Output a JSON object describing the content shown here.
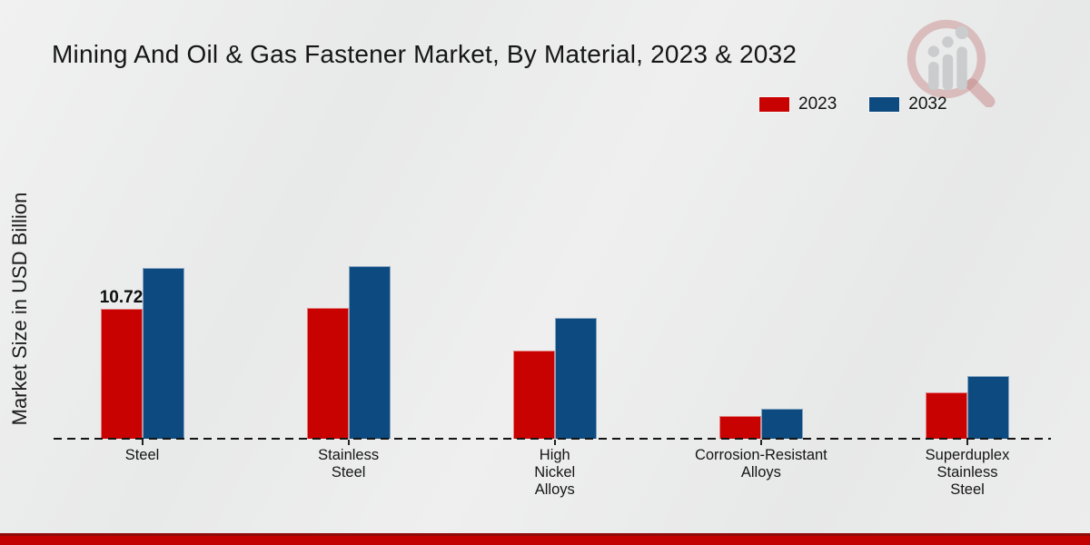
{
  "title": "Mining And Oil & Gas Fastener Market, By Material, 2023 & 2032",
  "y_axis_label": "Market Size in USD Billion",
  "legend": {
    "items": [
      {
        "label": "2023",
        "color": "#c80101"
      },
      {
        "label": "2032",
        "color": "#0d4a80"
      }
    ],
    "position": "top-right"
  },
  "logo": {
    "name": "magnifier-bar-chart-logo",
    "ring_color": "#d4a5a5",
    "bars_color": "#c7c9cb"
  },
  "footer": {
    "band_color": "#c30101",
    "band_edge_color": "#8f0a0a"
  },
  "chart_data": {
    "type": "bar",
    "title": "Mining And Oil & Gas Fastener Market, By Material, 2023 & 2032",
    "xlabel": "",
    "ylabel": "Market Size in USD Billion",
    "categories": [
      "Steel",
      "Stainless Steel",
      "High Nickel Alloys",
      "Corrosion-Resistant Alloys",
      "Superduplex Stainless Steel"
    ],
    "category_lines": [
      [
        "Steel"
      ],
      [
        "Stainless",
        "Steel"
      ],
      [
        "High",
        "Nickel",
        "Alloys"
      ],
      [
        "Corrosion-Resistant",
        "Alloys"
      ],
      [
        "Superduplex",
        "Stainless",
        "Steel"
      ]
    ],
    "series": [
      {
        "name": "2023",
        "color": "#c80101",
        "values": [
          10.72,
          10.8,
          7.3,
          1.9,
          3.8
        ]
      },
      {
        "name": "2032",
        "color": "#0d4a80",
        "values": [
          14.1,
          14.3,
          10.0,
          2.5,
          5.2
        ]
      }
    ],
    "data_labels": [
      {
        "series": "2023",
        "category": "Steel",
        "text": "10.72"
      }
    ],
    "ylim": [
      0,
      15
    ],
    "grid": false,
    "axis_style": "dashed zero baseline only, no y ticks",
    "legend_position": "top-right"
  }
}
